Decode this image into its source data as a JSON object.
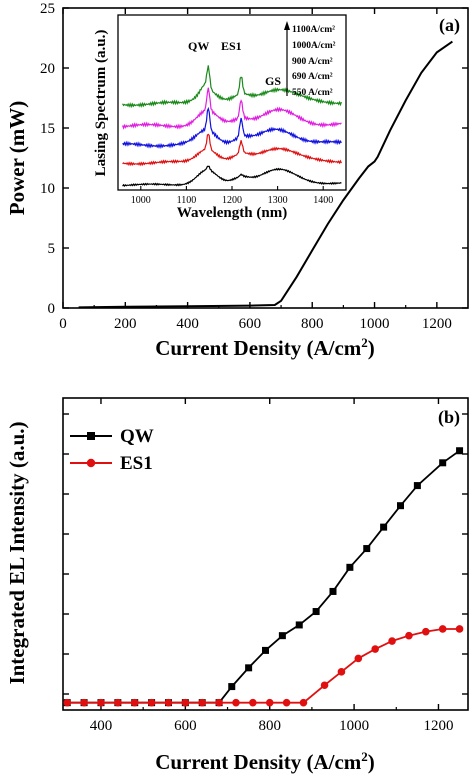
{
  "chart_data": [
    {
      "type": "line",
      "panel_label": "(a)",
      "xlabel": "Current Density (A/cm²)",
      "ylabel": "Power (mW)",
      "xlim": [
        0,
        1300
      ],
      "ylim": [
        0,
        25
      ],
      "x_ticks": [
        0,
        200,
        400,
        600,
        800,
        1000,
        1200
      ],
      "y_ticks": [
        0,
        5,
        10,
        15,
        20,
        25
      ],
      "series": [
        {
          "color": "#000000",
          "points": [
            [
              50,
              0.05
            ],
            [
              200,
              0.1
            ],
            [
              400,
              0.15
            ],
            [
              600,
              0.2
            ],
            [
              680,
              0.25
            ],
            [
              700,
              0.6
            ],
            [
              750,
              2.6
            ],
            [
              800,
              4.8
            ],
            [
              850,
              7.0
            ],
            [
              900,
              9.0
            ],
            [
              950,
              10.8
            ],
            [
              980,
              11.8
            ],
            [
              1000,
              12.2
            ],
            [
              1010,
              12.6
            ],
            [
              1050,
              14.8
            ],
            [
              1100,
              17.3
            ],
            [
              1150,
              19.6
            ],
            [
              1200,
              21.3
            ],
            [
              1250,
              22.2
            ]
          ]
        }
      ],
      "inset": {
        "xlabel": "Wavelength (nm)",
        "ylabel": "Lasing Spectrum (a.u.)",
        "xlim": [
          950,
          1450
        ],
        "x_ticks": [
          1000,
          1100,
          1200,
          1300,
          1400
        ],
        "peak_labels": [
          "QW",
          "ES1",
          "GS"
        ],
        "legend": [
          "1100A/cm²",
          "1000A/cm²",
          "900  A/cm²",
          "690 A/cm²",
          "550 A/cm²"
        ],
        "series": [
          {
            "name": "1100A/cm²",
            "color": "#1a8a1a",
            "offset": 4
          },
          {
            "name": "1000A/cm²",
            "color": "#e020e0",
            "offset": 3
          },
          {
            "name": "900  A/cm²",
            "color": "#1010e0",
            "offset": 2
          },
          {
            "name": "690 A/cm²",
            "color": "#e01010",
            "offset": 1
          },
          {
            "name": "550 A/cm²",
            "color": "#000000",
            "offset": 0
          }
        ]
      }
    },
    {
      "type": "line",
      "panel_label": "(b)",
      "xlabel": "Current Density (A/cm²)",
      "ylabel": "Integrated EL Intensity (a.u.)",
      "xlim": [
        310,
        1270
      ],
      "ylim": [
        0,
        1
      ],
      "x_ticks": [
        400,
        600,
        800,
        1000,
        1200
      ],
      "series": [
        {
          "name": "QW",
          "color": "#000000",
          "marker": "square",
          "x": [
            320,
            360,
            400,
            440,
            480,
            520,
            560,
            600,
            640,
            680,
            710,
            750,
            790,
            830,
            870,
            910,
            950,
            990,
            1030,
            1070,
            1110,
            1150,
            1210,
            1250
          ],
          "y": [
            0.005,
            0.005,
            0.005,
            0.005,
            0.005,
            0.005,
            0.005,
            0.005,
            0.005,
            0.005,
            0.065,
            0.135,
            0.2,
            0.255,
            0.295,
            0.345,
            0.42,
            0.51,
            0.58,
            0.66,
            0.74,
            0.815,
            0.9,
            0.945
          ]
        },
        {
          "name": "ES1",
          "color": "#e01010",
          "marker": "circle",
          "x": [
            320,
            360,
            400,
            440,
            480,
            520,
            560,
            600,
            640,
            680,
            720,
            760,
            800,
            840,
            880,
            930,
            970,
            1010,
            1050,
            1090,
            1130,
            1170,
            1210,
            1250
          ],
          "y": [
            0.005,
            0.005,
            0.005,
            0.005,
            0.005,
            0.005,
            0.005,
            0.005,
            0.005,
            0.005,
            0.005,
            0.005,
            0.005,
            0.005,
            0.005,
            0.07,
            0.12,
            0.17,
            0.205,
            0.235,
            0.255,
            0.27,
            0.28,
            0.28
          ]
        }
      ]
    }
  ]
}
